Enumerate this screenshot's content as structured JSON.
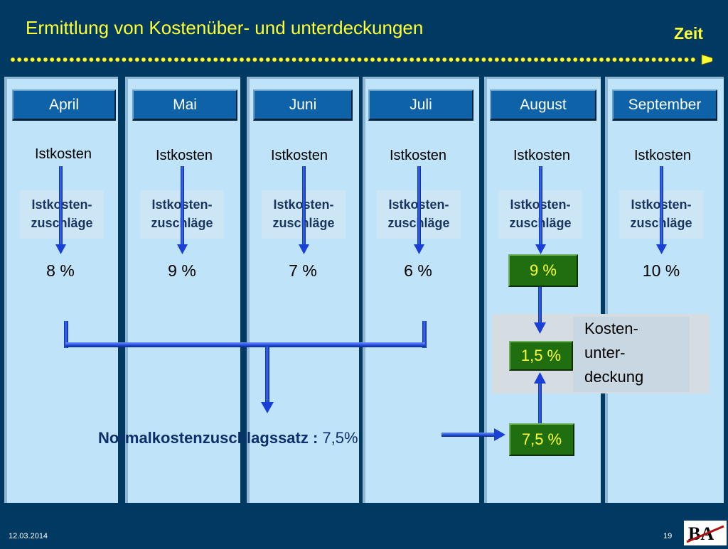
{
  "title": "Ermittlung von Kostenüber- und unterdeckungen",
  "zeit_label": "Zeit",
  "months": [
    {
      "name": "April",
      "istkosten": "Istkosten",
      "zuschlaege_line1": "Istkosten-",
      "zuschlaege_line2": "zuschläge",
      "rate": "8 %"
    },
    {
      "name": "Mai",
      "istkosten": "Istkosten",
      "zuschlaege_line1": "Istkosten-",
      "zuschlaege_line2": "zuschläge",
      "rate": "9 %"
    },
    {
      "name": "Juni",
      "istkosten": "Istkosten",
      "zuschlaege_line1": "Istkosten-",
      "zuschlaege_line2": "zuschläge",
      "rate": "7 %"
    },
    {
      "name": "Juli",
      "istkosten": "Istkosten",
      "zuschlaege_line1": "Istkosten-",
      "zuschlaege_line2": "zuschläge",
      "rate": "6 %"
    },
    {
      "name": "August",
      "istkosten": "Istkosten",
      "zuschlaege_line1": "Istkosten-",
      "zuschlaege_line2": "zuschläge",
      "rate": "9 %"
    },
    {
      "name": "September",
      "istkosten": "Istkosten",
      "zuschlaege_line1": "Istkosten-",
      "zuschlaege_line2": "zuschläge",
      "rate": "10 %"
    }
  ],
  "unterdeckung": {
    "value": "1,5 %",
    "label_line1": "Kosten-",
    "label_line2": "unter-",
    "label_line3": "deckung"
  },
  "normal": {
    "label": "Normalkostenzuschlagssatz :",
    "value": " 7,5%",
    "box_value": "7,5 %"
  },
  "footer": {
    "date": "12.03.2014",
    "page": "19",
    "logo_text": "BA"
  },
  "colors": {
    "background": "#003a63",
    "column": "#bfe3f8",
    "month_header": "#0d62a8",
    "highlight_box": "#1f6e10",
    "highlight_text": "#ffff33",
    "arrow": "#1a3fd6"
  }
}
